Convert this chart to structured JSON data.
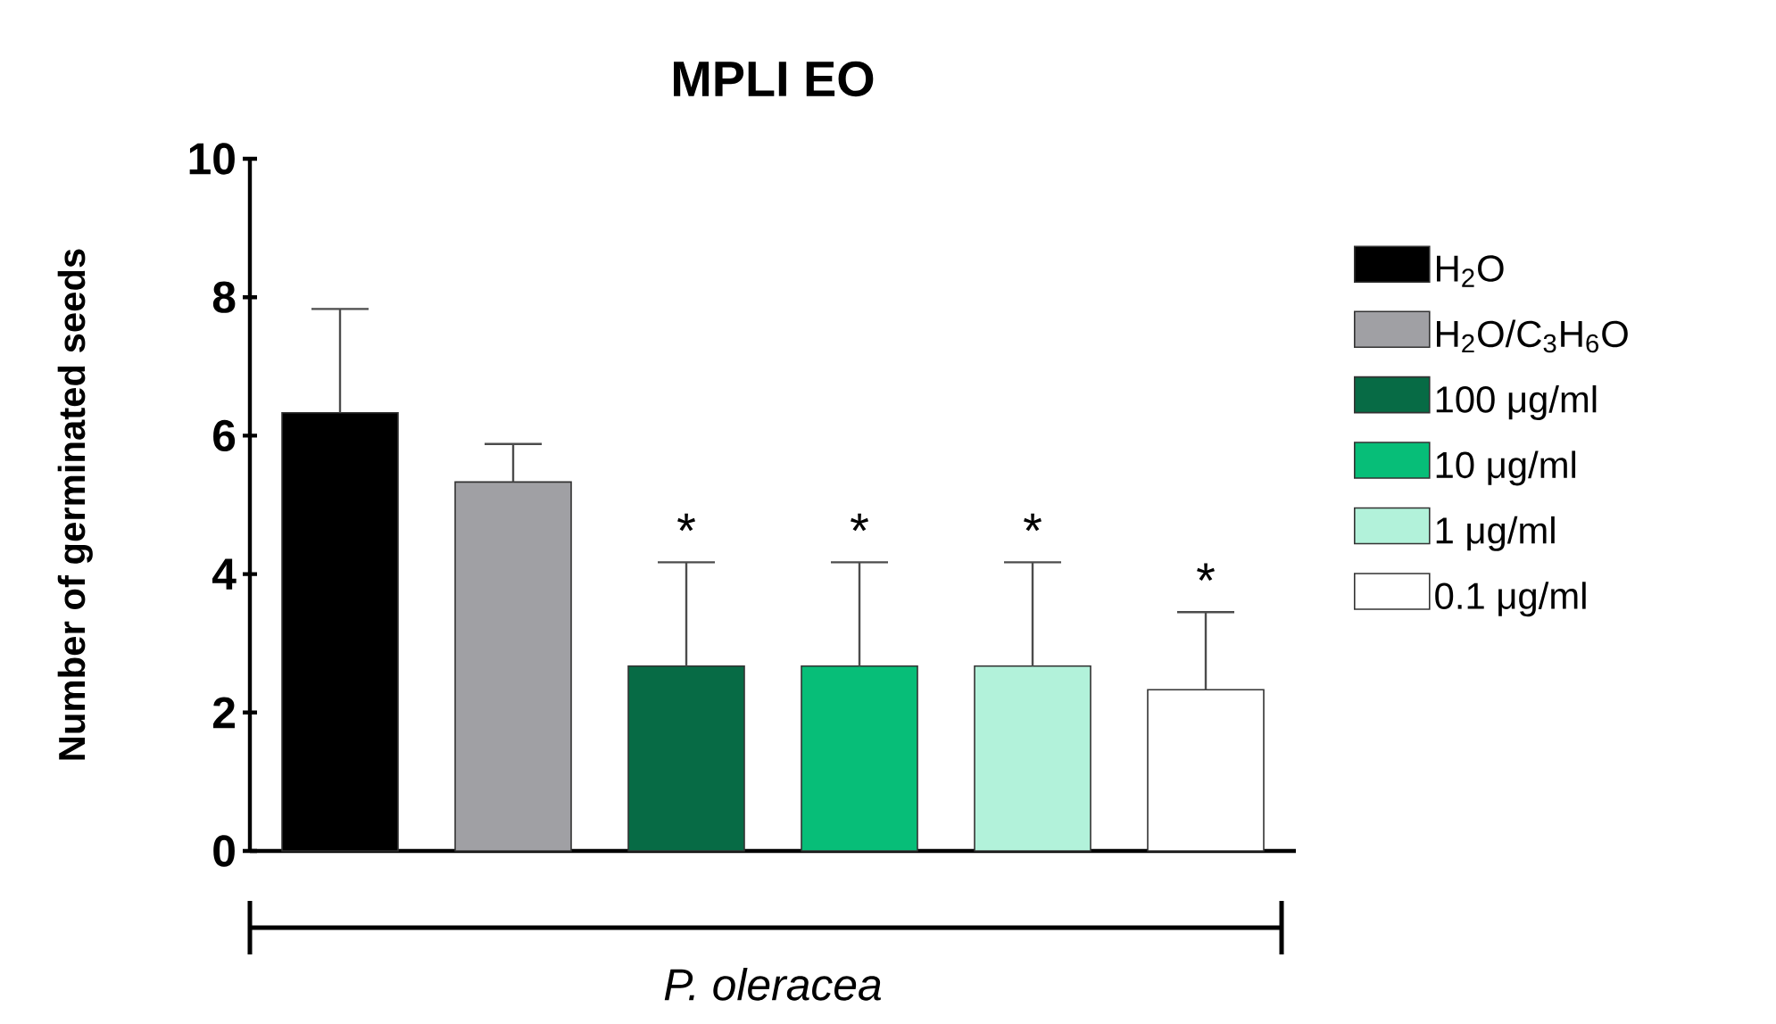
{
  "chart_data": {
    "type": "bar",
    "title": "MPLI EO",
    "ylabel": "Number of germinated seeds",
    "categories": [
      "P. oleracea"
    ],
    "series": [
      {
        "name": "H$_{2}$O",
        "color": "#000000",
        "values": [
          6.33
        ],
        "errors": [
          1.5
        ]
      },
      {
        "name": "H$_{2}$O/C$_{3}$H$_{6}$O",
        "color": "#a0a0a4",
        "values": [
          5.33
        ],
        "errors": [
          0.55
        ]
      },
      {
        "name": "100 μg/ml",
        "color": "#076b45",
        "values": [
          2.67
        ],
        "errors": [
          1.5
        ],
        "value_labels": [
          "*"
        ]
      },
      {
        "name": "10 μg/ml",
        "color": "#07be78",
        "values": [
          2.67
        ],
        "errors": [
          1.5
        ],
        "value_labels": [
          "*"
        ]
      },
      {
        "name": "1 μg/ml",
        "color": "#b2f2da",
        "values": [
          2.67
        ],
        "errors": [
          1.5
        ],
        "value_labels": [
          "*"
        ]
      },
      {
        "name": "0.1 μg/ml",
        "color": "#ffffff",
        "values": [
          2.33
        ],
        "errors": [
          1.12
        ],
        "value_labels": [
          "*"
        ]
      }
    ],
    "ylim": [
      0,
      10
    ],
    "yticks": [
      0,
      2,
      4,
      6,
      8,
      10
    ],
    "legend": "right",
    "grid": false
  }
}
